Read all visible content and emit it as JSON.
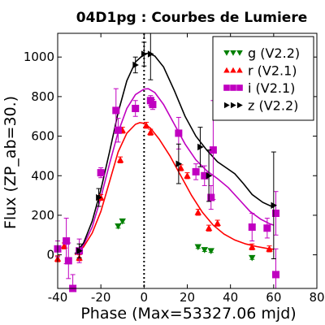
{
  "chart_data": {
    "type": "scatter",
    "title": "04D1pg : Courbes de Lumiere",
    "xlabel": "Phase (Max=53327.06 mjd)",
    "ylabel": "Flux (ZP_ab=30.)",
    "xlim": [
      -40,
      80
    ],
    "ylim": [
      -170,
      1120
    ],
    "xticks": [
      -40,
      -20,
      0,
      20,
      40,
      60,
      80
    ],
    "yticks": [
      0,
      200,
      400,
      600,
      800,
      1000
    ],
    "max_phase_marker": 0,
    "grid": false,
    "legend_position": "top-right",
    "series": [
      {
        "name": "g (V2.2)",
        "color": "#008000",
        "marker": "triangle-down",
        "points": [
          {
            "x": -10,
            "y": 170,
            "err": 10
          },
          {
            "x": -12,
            "y": 145,
            "err": 10
          },
          {
            "x": 25,
            "y": 40,
            "err": 8
          },
          {
            "x": 28,
            "y": 25,
            "err": 8
          },
          {
            "x": 31,
            "y": 20,
            "err": 8
          },
          {
            "x": 50,
            "y": -15,
            "err": 8
          }
        ],
        "curve": []
      },
      {
        "name": "r (V2.1)",
        "color": "#ff0000",
        "marker": "triangle-up",
        "points": [
          {
            "x": -40,
            "y": -20,
            "err": 15
          },
          {
            "x": -37,
            "y": 45,
            "err": 15
          },
          {
            "x": -30,
            "y": -15,
            "err": 15
          },
          {
            "x": -20,
            "y": 290,
            "err": 15
          },
          {
            "x": -11,
            "y": 480,
            "err": 15
          },
          {
            "x": -10,
            "y": 630,
            "err": 15
          },
          {
            "x": 1,
            "y": 655,
            "err": 15
          },
          {
            "x": 3,
            "y": 620,
            "err": 15
          },
          {
            "x": 17,
            "y": 440,
            "err": 15
          },
          {
            "x": 20,
            "y": 400,
            "err": 15
          },
          {
            "x": 25,
            "y": 215,
            "err": 15
          },
          {
            "x": 30,
            "y": 135,
            "err": 15
          },
          {
            "x": 34,
            "y": 160,
            "err": 15
          },
          {
            "x": 50,
            "y": 40,
            "err": 15
          },
          {
            "x": 58,
            "y": 30,
            "err": 15
          }
        ],
        "curve": [
          {
            "x": -32,
            "y": 0
          },
          {
            "x": -28,
            "y": 40
          },
          {
            "x": -24,
            "y": 110
          },
          {
            "x": -20,
            "y": 220
          },
          {
            "x": -16,
            "y": 370
          },
          {
            "x": -12,
            "y": 520
          },
          {
            "x": -8,
            "y": 615
          },
          {
            "x": -4,
            "y": 660
          },
          {
            "x": -2,
            "y": 668
          },
          {
            "x": 0,
            "y": 665
          },
          {
            "x": 3,
            "y": 640
          },
          {
            "x": 7,
            "y": 585
          },
          {
            "x": 12,
            "y": 500
          },
          {
            "x": 17,
            "y": 400
          },
          {
            "x": 22,
            "y": 300
          },
          {
            "x": 27,
            "y": 215
          },
          {
            "x": 32,
            "y": 150
          },
          {
            "x": 37,
            "y": 105
          },
          {
            "x": 42,
            "y": 75
          },
          {
            "x": 47,
            "y": 55
          },
          {
            "x": 52,
            "y": 42
          },
          {
            "x": 57,
            "y": 32
          },
          {
            "x": 60,
            "y": 28
          }
        ]
      },
      {
        "name": "i (V2.1)",
        "color": "#c000c0",
        "marker": "square",
        "points": [
          {
            "x": -40,
            "y": 30,
            "err": 40
          },
          {
            "x": -36,
            "y": 70,
            "err": 115
          },
          {
            "x": -35,
            "y": -30,
            "err": 90
          },
          {
            "x": -33,
            "y": -170,
            "err": 70
          },
          {
            "x": -30,
            "y": 20,
            "err": 60
          },
          {
            "x": -20,
            "y": 415,
            "err": 25
          },
          {
            "x": -13,
            "y": 730,
            "err": 110
          },
          {
            "x": -12,
            "y": 630,
            "err": 60
          },
          {
            "x": -4,
            "y": 740,
            "err": 40
          },
          {
            "x": 3,
            "y": 780,
            "err": 25
          },
          {
            "x": 4,
            "y": 760,
            "err": 25
          },
          {
            "x": 16,
            "y": 615,
            "err": 80
          },
          {
            "x": 24,
            "y": 420,
            "err": 40
          },
          {
            "x": 28,
            "y": 400,
            "err": 50
          },
          {
            "x": 31,
            "y": 290,
            "err": 60
          },
          {
            "x": 32,
            "y": 530,
            "err": 250
          },
          {
            "x": 50,
            "y": 140,
            "err": 70
          },
          {
            "x": 57,
            "y": 135,
            "err": 50
          },
          {
            "x": 61,
            "y": 210,
            "err": 110
          },
          {
            "x": 61,
            "y": -100,
            "err": 130
          }
        ],
        "curve": [
          {
            "x": -32,
            "y": 5
          },
          {
            "x": -28,
            "y": 50
          },
          {
            "x": -24,
            "y": 140
          },
          {
            "x": -20,
            "y": 290
          },
          {
            "x": -16,
            "y": 460
          },
          {
            "x": -12,
            "y": 620
          },
          {
            "x": -8,
            "y": 740
          },
          {
            "x": -4,
            "y": 810
          },
          {
            "x": 0,
            "y": 838
          },
          {
            "x": 2,
            "y": 840
          },
          {
            "x": 5,
            "y": 820
          },
          {
            "x": 9,
            "y": 760
          },
          {
            "x": 14,
            "y": 660
          },
          {
            "x": 19,
            "y": 560
          },
          {
            "x": 24,
            "y": 480
          },
          {
            "x": 29,
            "y": 425
          },
          {
            "x": 34,
            "y": 385
          },
          {
            "x": 39,
            "y": 340
          },
          {
            "x": 44,
            "y": 280
          },
          {
            "x": 49,
            "y": 220
          },
          {
            "x": 54,
            "y": 180
          },
          {
            "x": 58,
            "y": 158
          },
          {
            "x": 60,
            "y": 150
          }
        ]
      },
      {
        "name": "z (V2.2)",
        "color": "#000000",
        "marker": "triangle-right",
        "points": [
          {
            "x": -30,
            "y": 20,
            "err": 35
          },
          {
            "x": -21,
            "y": 290,
            "err": 45
          },
          {
            "x": -4,
            "y": 960,
            "err": 40
          },
          {
            "x": 0,
            "y": 1015,
            "err": 60
          },
          {
            "x": 3,
            "y": 1015,
            "err": 130
          },
          {
            "x": 16,
            "y": 460,
            "err": 100
          },
          {
            "x": 26,
            "y": 545,
            "err": 100
          },
          {
            "x": 30,
            "y": 400,
            "err": 130
          },
          {
            "x": 60,
            "y": 250,
            "err": 270
          }
        ],
        "curve": [
          {
            "x": -32,
            "y": 5
          },
          {
            "x": -28,
            "y": 60
          },
          {
            "x": -24,
            "y": 170
          },
          {
            "x": -20,
            "y": 330
          },
          {
            "x": -16,
            "y": 520
          },
          {
            "x": -12,
            "y": 720
          },
          {
            "x": -8,
            "y": 880
          },
          {
            "x": -4,
            "y": 975
          },
          {
            "x": 0,
            "y": 1015
          },
          {
            "x": 2,
            "y": 1020
          },
          {
            "x": 5,
            "y": 1005
          },
          {
            "x": 9,
            "y": 950
          },
          {
            "x": 14,
            "y": 830
          },
          {
            "x": 19,
            "y": 700
          },
          {
            "x": 24,
            "y": 600
          },
          {
            "x": 29,
            "y": 530
          },
          {
            "x": 34,
            "y": 470
          },
          {
            "x": 38,
            "y": 440
          },
          {
            "x": 42,
            "y": 410
          },
          {
            "x": 46,
            "y": 360
          },
          {
            "x": 50,
            "y": 305
          },
          {
            "x": 55,
            "y": 265
          },
          {
            "x": 60,
            "y": 240
          }
        ]
      }
    ]
  }
}
